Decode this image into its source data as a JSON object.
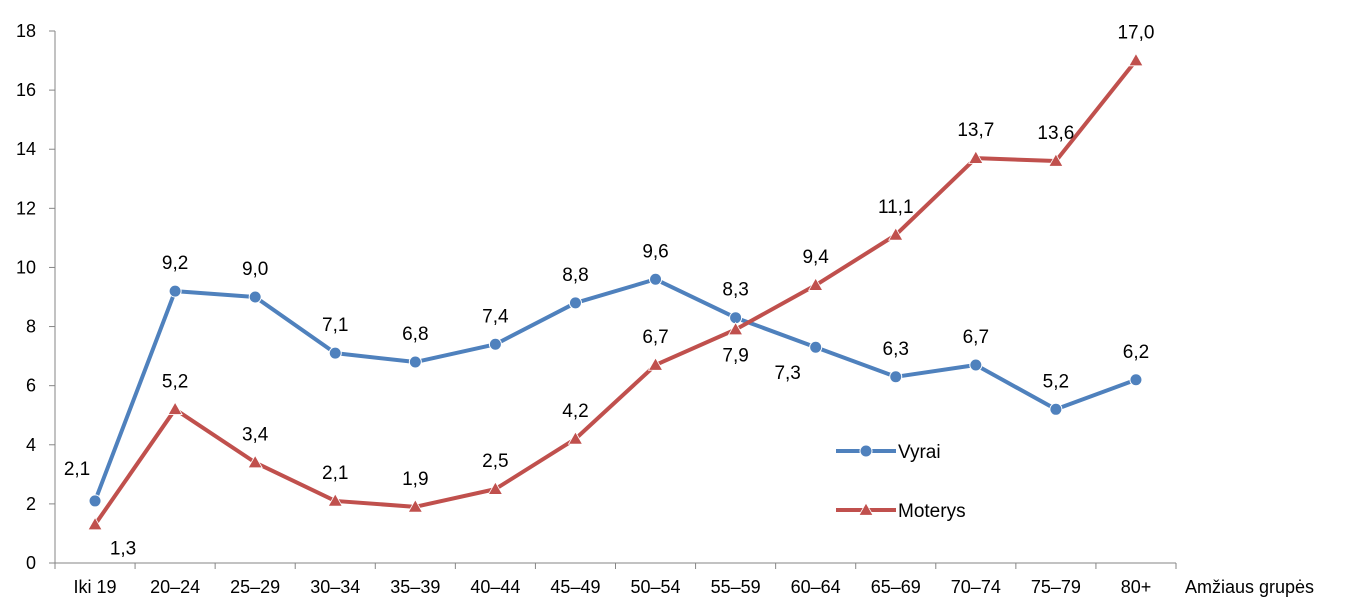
{
  "chart_data": {
    "type": "line",
    "xlabel": "Amžiaus grupės",
    "ylabel": "",
    "ylim": [
      0,
      18
    ],
    "yticks": [
      0,
      2,
      4,
      6,
      8,
      10,
      12,
      14,
      16,
      18
    ],
    "grid": false,
    "legend_position": "center-right",
    "categories": [
      "Iki 19",
      "20–24",
      "25–29",
      "30–34",
      "35–39",
      "40–44",
      "45–49",
      "50–54",
      "55–59",
      "60–64",
      "65–69",
      "70–74",
      "75–79",
      "80+"
    ],
    "series": [
      {
        "name": "Vyrai",
        "color": "#4F81BD",
        "marker": "circle",
        "values": [
          2.1,
          9.2,
          9.0,
          7.1,
          6.8,
          7.4,
          8.8,
          9.6,
          8.3,
          7.3,
          6.3,
          6.7,
          5.2,
          6.2
        ],
        "labels": [
          "2,1",
          "9,2",
          "9,0",
          "7,1",
          "6,8",
          "7,4",
          "8,8",
          "9,6",
          "8,3",
          "7,3",
          "6,3",
          "6,7",
          "5,2",
          "6,2"
        ]
      },
      {
        "name": "Moterys",
        "color": "#C0504D",
        "marker": "triangle",
        "values": [
          1.3,
          5.2,
          3.4,
          2.1,
          1.9,
          2.5,
          4.2,
          6.7,
          7.9,
          9.4,
          11.1,
          13.7,
          13.6,
          17.0
        ],
        "labels": [
          "1,3",
          "5,2",
          "3,4",
          "2,1",
          "1,9",
          "2,5",
          "4,2",
          "6,7",
          "7,9",
          "9,4",
          "11,1",
          "13,7",
          "13,6",
          "17,0"
        ]
      }
    ]
  }
}
